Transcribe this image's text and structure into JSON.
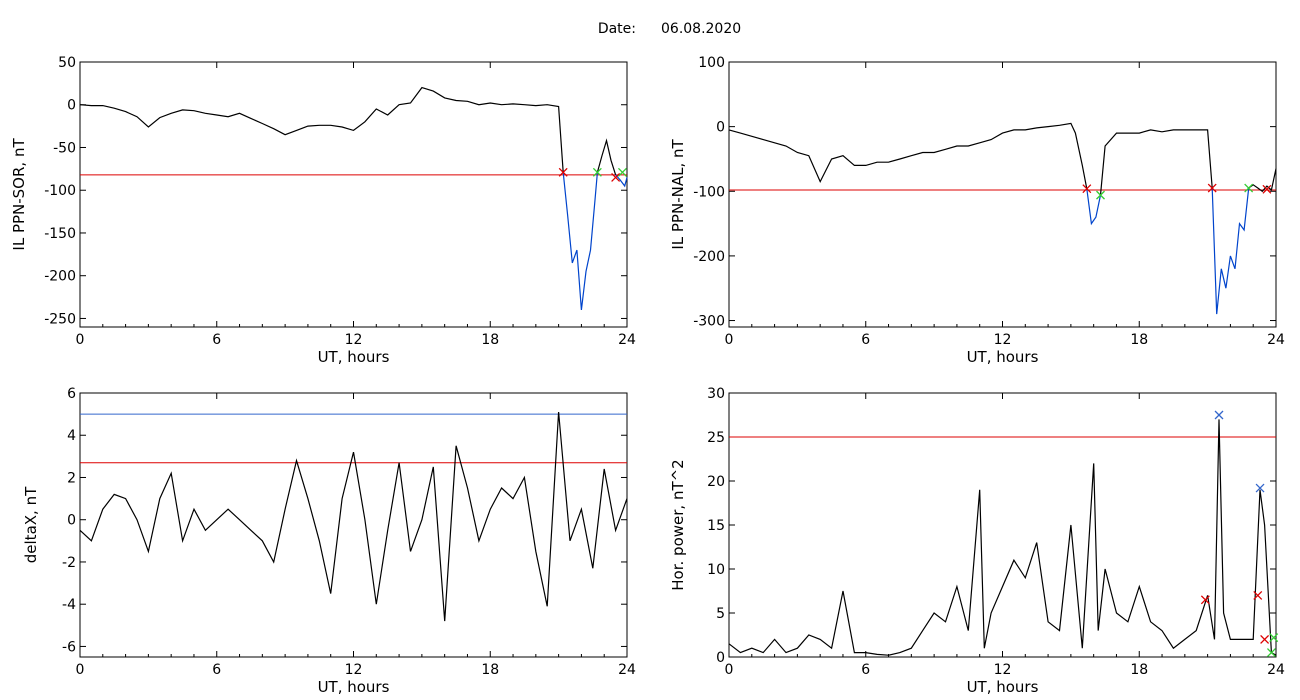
{
  "figure": {
    "date_label": "Date:",
    "date_value": "06.08.2020"
  },
  "chart_data": [
    {
      "type": "line",
      "ylabel": "IL PPN-SOR, nT",
      "xlabel": "UT, hours",
      "xlim": [
        0,
        24
      ],
      "ylim": [
        -260,
        50
      ],
      "xticks": [
        0,
        6,
        12,
        18,
        24
      ],
      "yticks": [
        50,
        0,
        -50,
        -100,
        -150,
        -200,
        -250
      ],
      "hlines": [
        {
          "y": -82,
          "color": "#dd0000"
        }
      ],
      "series": [
        {
          "color": "#000000",
          "x": [
            0,
            0.5,
            1,
            1.5,
            2,
            2.5,
            3,
            3.5,
            4,
            4.5,
            5,
            5.5,
            6,
            6.5,
            7,
            7.5,
            8,
            8.5,
            9,
            9.5,
            10,
            10.5,
            11,
            11.5,
            12,
            12.5,
            13,
            13.5,
            14,
            14.5,
            15,
            15.5,
            16,
            16.5,
            17,
            17.5,
            18,
            18.5,
            19,
            19.5,
            20,
            20.5,
            21,
            21.2
          ],
          "y": [
            0,
            -1,
            -1,
            -4,
            -8,
            -14,
            -26,
            -15,
            -10,
            -6,
            -7,
            -10,
            -12,
            -14,
            -10,
            -16,
            -22,
            -28,
            -35,
            -30,
            -25,
            -24,
            -24,
            -26,
            -30,
            -20,
            -5,
            -12,
            0,
            2,
            20,
            16,
            8,
            5,
            4,
            0,
            2,
            0,
            1,
            0,
            -1,
            0,
            -2,
            -79
          ]
        },
        {
          "color": "#0044cc",
          "x": [
            21.2,
            21.4,
            21.6,
            21.8,
            22,
            22.2,
            22.4,
            22.6,
            22.7
          ],
          "y": [
            -79,
            -130,
            -185,
            -170,
            -240,
            -195,
            -170,
            -110,
            -79
          ]
        },
        {
          "color": "#000000",
          "x": [
            22.7,
            22.9,
            23.1,
            23.3,
            23.5
          ],
          "y": [
            -79,
            -60,
            -42,
            -65,
            -82
          ]
        },
        {
          "color": "#0044cc",
          "x": [
            23.5,
            23.7,
            23.9,
            24
          ],
          "y": [
            -82,
            -88,
            -95,
            -85
          ]
        }
      ],
      "markers": [
        {
          "x": 21.2,
          "y": -79,
          "color": "#dd0000"
        },
        {
          "x": 22.7,
          "y": -79,
          "color": "#33cc33"
        },
        {
          "x": 23.5,
          "y": -85,
          "color": "#dd0000"
        },
        {
          "x": 23.8,
          "y": -79,
          "color": "#33cc33"
        }
      ]
    },
    {
      "type": "line",
      "ylabel": "IL PPN-NAL, nT",
      "xlabel": "UT, hours",
      "xlim": [
        0,
        24
      ],
      "ylim": [
        -310,
        100
      ],
      "xticks": [
        0,
        6,
        12,
        18,
        24
      ],
      "yticks": [
        100,
        0,
        -100,
        -200,
        -300
      ],
      "hlines": [
        {
          "y": -98,
          "color": "#dd0000"
        }
      ],
      "series": [
        {
          "color": "#000000",
          "x": [
            0,
            0.5,
            1,
            1.5,
            2,
            2.5,
            3,
            3.5,
            4,
            4.5,
            5,
            5.5,
            6,
            6.5,
            7,
            7.5,
            8,
            8.5,
            9,
            9.5,
            10,
            10.5,
            11,
            11.5,
            12,
            12.5,
            13,
            13.5,
            14,
            14.5,
            15,
            15.2,
            15.5,
            15.7
          ],
          "y": [
            -5,
            -10,
            -15,
            -20,
            -25,
            -30,
            -40,
            -45,
            -85,
            -50,
            -45,
            -60,
            -60,
            -55,
            -55,
            -50,
            -45,
            -40,
            -40,
            -35,
            -30,
            -30,
            -25,
            -20,
            -10,
            -5,
            -5,
            -2,
            0,
            2,
            5,
            -10,
            -60,
            -96
          ]
        },
        {
          "color": "#0044cc",
          "x": [
            15.7,
            15.9,
            16.1,
            16.3
          ],
          "y": [
            -96,
            -150,
            -140,
            -106
          ]
        },
        {
          "color": "#000000",
          "x": [
            16.3,
            16.5,
            17,
            17.5,
            18,
            18.5,
            19,
            19.5,
            20,
            20.5,
            21,
            21.2
          ],
          "y": [
            -106,
            -30,
            -10,
            -10,
            -10,
            -5,
            -8,
            -5,
            -5,
            -5,
            -5,
            -95
          ]
        },
        {
          "color": "#0044cc",
          "x": [
            21.2,
            21.4,
            21.6,
            21.8,
            22,
            22.2,
            22.4,
            22.6,
            22.8
          ],
          "y": [
            -95,
            -290,
            -220,
            -250,
            -200,
            -220,
            -150,
            -160,
            -95
          ]
        },
        {
          "color": "#000000",
          "x": [
            22.8,
            23,
            23.2,
            23.4,
            23.6,
            23.8,
            24
          ],
          "y": [
            -95,
            -90,
            -95,
            -100,
            -92,
            -98,
            -65
          ]
        }
      ],
      "markers": [
        {
          "x": 15.7,
          "y": -96,
          "color": "#dd0000"
        },
        {
          "x": 16.3,
          "y": -106,
          "color": "#33cc33"
        },
        {
          "x": 21.2,
          "y": -95,
          "color": "#dd0000"
        },
        {
          "x": 22.8,
          "y": -95,
          "color": "#33cc33"
        },
        {
          "x": 23.6,
          "y": -97,
          "color": "#dd0000"
        }
      ]
    },
    {
      "type": "line",
      "ylabel": "deltaX, nT",
      "xlabel": "UT, hours",
      "xlim": [
        0,
        24
      ],
      "ylim": [
        -6.5,
        6
      ],
      "xticks": [
        0,
        6,
        12,
        18,
        24
      ],
      "yticks": [
        6,
        4,
        2,
        0,
        -2,
        -4,
        -6
      ],
      "hlines": [
        {
          "y": 5.0,
          "color": "#3366cc"
        },
        {
          "y": 2.7,
          "color": "#dd0000"
        }
      ],
      "series": [
        {
          "color": "#000000",
          "x": [
            0,
            0.5,
            1,
            1.5,
            2,
            2.5,
            3,
            3.5,
            4,
            4.5,
            5,
            5.5,
            6,
            6.5,
            7,
            7.5,
            8,
            8.5,
            9,
            9.5,
            10,
            10.5,
            11,
            11.5,
            12,
            12.5,
            13,
            13.5,
            14,
            14.5,
            15,
            15.5,
            16,
            16.5,
            17,
            17.5,
            18,
            18.5,
            19,
            19.5,
            20,
            20.5,
            21,
            21.5,
            22,
            22.5,
            23,
            23.5,
            24
          ],
          "y": [
            -0.5,
            -1,
            0.5,
            1.2,
            1,
            0,
            -1.5,
            1,
            2.2,
            -1,
            0.5,
            -0.5,
            0,
            0.5,
            0,
            -0.5,
            -1,
            -2,
            0.5,
            2.8,
            1,
            -1,
            -3.5,
            1,
            3.2,
            0,
            -4,
            -0.5,
            2.7,
            -1.5,
            0,
            2.5,
            -4.8,
            3.5,
            1.5,
            -1,
            0.5,
            1.5,
            1,
            2,
            -1.5,
            -4.1,
            5.1,
            -1,
            0.5,
            -2.3,
            2.4,
            -0.5,
            1
          ]
        }
      ],
      "markers": []
    },
    {
      "type": "line",
      "ylabel": "Hor. power, nT^2",
      "xlabel": "UT, hours",
      "xlim": [
        0,
        24
      ],
      "ylim": [
        0,
        30
      ],
      "xticks": [
        0,
        6,
        12,
        18,
        24
      ],
      "yticks": [
        0,
        5,
        10,
        15,
        20,
        25,
        30
      ],
      "hlines": [
        {
          "y": 25,
          "color": "#dd0000"
        }
      ],
      "series": [
        {
          "color": "#000000",
          "x": [
            0,
            0.5,
            1,
            1.5,
            2,
            2.5,
            3,
            3.5,
            4,
            4.5,
            5,
            5.5,
            6,
            6.5,
            7,
            7.5,
            8,
            8.5,
            9,
            9.5,
            10,
            10.5,
            11,
            11.2,
            11.5,
            12,
            12.5,
            13,
            13.5,
            14,
            14.5,
            15,
            15.5,
            16,
            16.2,
            16.5,
            17,
            17.5,
            18,
            18.5,
            19,
            19.5,
            20,
            20.5,
            21,
            21.3,
            21.5,
            21.7,
            22,
            22.5,
            23,
            23.3,
            23.5,
            23.8,
            24
          ],
          "y": [
            1.5,
            0.5,
            1,
            0.5,
            2,
            0.5,
            1,
            2.5,
            2,
            1,
            7.5,
            0.5,
            0.5,
            0.3,
            0.2,
            0.5,
            1,
            3,
            5,
            4,
            8,
            3,
            19,
            1,
            5,
            8,
            11,
            9,
            13,
            4,
            3,
            15,
            1,
            22,
            3,
            10,
            5,
            4,
            8,
            4,
            3,
            1,
            2,
            3,
            7,
            2,
            27,
            5,
            2,
            2,
            2,
            19,
            15,
            0.5,
            0.2
          ]
        }
      ],
      "markers": [
        {
          "x": 21.5,
          "y": 27.5,
          "color": "#3366cc"
        },
        {
          "x": 23.3,
          "y": 19.2,
          "color": "#3366cc"
        },
        {
          "x": 20.9,
          "y": 6.5,
          "color": "#dd0000"
        },
        {
          "x": 23.2,
          "y": 7.0,
          "color": "#dd0000"
        },
        {
          "x": 23.5,
          "y": 2.0,
          "color": "#dd0000"
        },
        {
          "x": 23.9,
          "y": 2.2,
          "color": "#33cc33"
        },
        {
          "x": 23.8,
          "y": 0.5,
          "color": "#33cc33"
        }
      ]
    }
  ]
}
